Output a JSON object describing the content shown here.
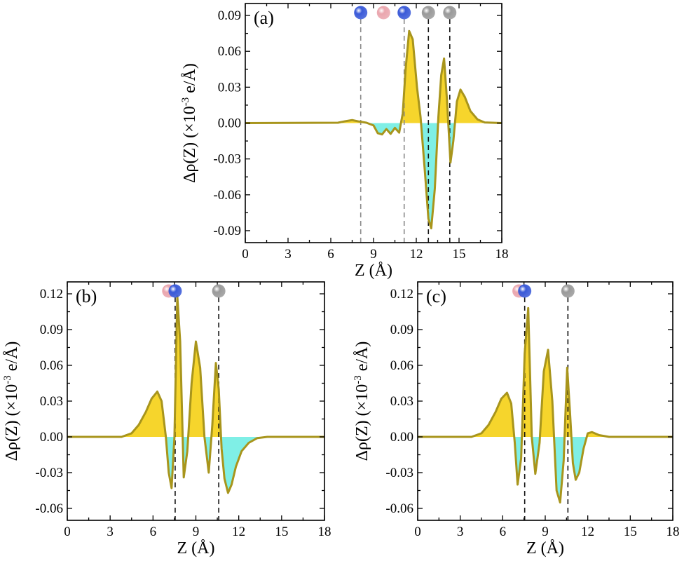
{
  "figure": {
    "colors": {
      "curve": "#a8951c",
      "positive_fill": "#f6d52c",
      "negative_fill": "#7fefe6",
      "atom_blue": "#3a5ad8",
      "atom_pink": "#eaa6ae",
      "atom_gray": "#9a9a9a",
      "guide_black": "#111111",
      "guide_gray": "#8a8a8a"
    }
  },
  "chart_data": [
    {
      "type": "area",
      "panel_label": "(a)",
      "xlabel": "Z (Å)",
      "ylabel": "Δρ(Z) (×10",
      "ylabel_exp": "-3",
      "ylabel_tail": " e/Å)",
      "xlim": [
        0,
        18
      ],
      "ylim": [
        -0.1,
        0.1
      ],
      "xticks": [
        0,
        3,
        6,
        9,
        12,
        15,
        18
      ],
      "yticks": [
        -0.09,
        -0.06,
        -0.03,
        0.0,
        0.03,
        0.06,
        0.09
      ],
      "xtick_labels": [
        "0",
        "3",
        "6",
        "9",
        "12",
        "15",
        "18"
      ],
      "ytick_labels": [
        "-0.09",
        "-0.06",
        "-0.03",
        "0.00",
        "0.03",
        "0.06",
        "0.09"
      ],
      "grid": false,
      "fill": "positive yellow, negative cyan",
      "x": [
        0,
        6.5,
        7.0,
        7.5,
        7.9,
        8.5,
        9.0,
        9.3,
        9.6,
        9.9,
        10.2,
        10.5,
        10.8,
        11.05,
        11.25,
        11.5,
        11.75,
        12.05,
        12.3,
        12.6,
        12.85,
        13.05,
        13.3,
        13.55,
        13.75,
        13.95,
        14.15,
        14.4,
        14.6,
        14.85,
        15.1,
        15.4,
        15.8,
        16.3,
        16.8,
        18
      ],
      "y": [
        0,
        0.0003,
        0.0015,
        0.0025,
        0.0015,
        0.0003,
        -0.002,
        -0.0085,
        -0.0095,
        -0.005,
        -0.009,
        -0.004,
        -0.008,
        0.008,
        0.045,
        0.077,
        0.07,
        0.03,
        0.005,
        -0.04,
        -0.08,
        -0.088,
        -0.055,
        0.005,
        0.04,
        0.054,
        0.02,
        -0.033,
        -0.015,
        0.018,
        0.028,
        0.022,
        0.01,
        0.003,
        0.0005,
        0
      ],
      "atoms": [
        {
          "z": 8.1,
          "element_color": "blue",
          "guide": "gray"
        },
        {
          "z": 9.7,
          "element_color": "pink",
          "guide": "none"
        },
        {
          "z": 11.15,
          "element_color": "blue",
          "guide": "gray"
        },
        {
          "z": 12.85,
          "element_color": "gray",
          "guide": "black"
        },
        {
          "z": 14.35,
          "element_color": "gray",
          "guide": "black"
        }
      ]
    },
    {
      "type": "area",
      "panel_label": "(b)",
      "xlabel": "Z (Å)",
      "ylabel": "Δρ(Z) (×10",
      "ylabel_exp": "-3",
      "ylabel_tail": " e/Å)",
      "xlim": [
        0,
        18
      ],
      "ylim": [
        -0.07,
        0.13
      ],
      "xticks": [
        0,
        3,
        6,
        9,
        12,
        15,
        18
      ],
      "yticks": [
        -0.06,
        -0.03,
        0.0,
        0.03,
        0.06,
        0.09,
        0.12
      ],
      "xtick_labels": [
        "0",
        "3",
        "6",
        "9",
        "12",
        "15",
        "18"
      ],
      "ytick_labels": [
        "-0.06",
        "-0.03",
        "0.00",
        "0.03",
        "0.06",
        "0.09",
        "0.12"
      ],
      "grid": false,
      "fill": "positive yellow, negative cyan",
      "x": [
        0,
        3.8,
        4.5,
        5.0,
        5.5,
        5.9,
        6.3,
        6.6,
        6.9,
        7.1,
        7.3,
        7.5,
        7.7,
        7.9,
        8.15,
        8.4,
        8.7,
        9.0,
        9.3,
        9.6,
        9.9,
        10.15,
        10.4,
        10.6,
        10.8,
        11.0,
        11.25,
        11.5,
        11.8,
        12.2,
        12.7,
        13.3,
        14.0,
        18
      ],
      "y": [
        0,
        0,
        0.003,
        0.01,
        0.021,
        0.032,
        0.038,
        0.03,
        0.0,
        -0.03,
        -0.043,
        0.0,
        0.118,
        0.08,
        -0.034,
        -0.012,
        0.045,
        0.08,
        0.058,
        0.0,
        -0.03,
        0.01,
        0.062,
        0.04,
        -0.01,
        -0.035,
        -0.047,
        -0.04,
        -0.025,
        -0.012,
        -0.005,
        -0.001,
        0,
        0
      ],
      "atoms": [
        {
          "z": 7.1,
          "element_color": "pink",
          "guide": "none"
        },
        {
          "z": 7.55,
          "element_color": "blue",
          "guide": "black"
        },
        {
          "z": 10.6,
          "element_color": "gray",
          "guide": "black"
        }
      ]
    },
    {
      "type": "area",
      "panel_label": "(c)",
      "xlabel": "Z (Å)",
      "ylabel": "Δρ(Z) (×10",
      "ylabel_exp": "-3",
      "ylabel_tail": " e/Å)",
      "xlim": [
        0,
        18
      ],
      "ylim": [
        -0.07,
        0.13
      ],
      "xticks": [
        0,
        3,
        6,
        9,
        12,
        15,
        18
      ],
      "yticks": [
        -0.06,
        -0.03,
        0.0,
        0.03,
        0.06,
        0.09,
        0.12
      ],
      "xtick_labels": [
        "0",
        "3",
        "6",
        "9",
        "12",
        "15",
        "18"
      ],
      "ytick_labels": [
        "-0.06",
        "-0.03",
        "0.00",
        "0.03",
        "0.06",
        "0.09",
        "0.12"
      ],
      "grid": false,
      "fill": "positive yellow, negative cyan",
      "x": [
        0,
        3.8,
        4.5,
        5.0,
        5.5,
        5.9,
        6.3,
        6.6,
        6.85,
        7.05,
        7.3,
        7.55,
        7.8,
        8.05,
        8.3,
        8.6,
        8.9,
        9.2,
        9.5,
        9.8,
        10.05,
        10.3,
        10.55,
        10.75,
        10.95,
        11.15,
        11.4,
        11.7,
        12.0,
        12.3,
        12.8,
        13.5,
        18
      ],
      "y": [
        0,
        0,
        0.003,
        0.01,
        0.021,
        0.032,
        0.037,
        0.028,
        -0.005,
        -0.04,
        -0.018,
        0.07,
        0.108,
        0.0,
        -0.031,
        -0.005,
        0.055,
        0.073,
        0.03,
        -0.045,
        -0.055,
        -0.02,
        0.058,
        0.02,
        -0.022,
        -0.036,
        -0.03,
        -0.01,
        0.003,
        0.004,
        0.0015,
        0,
        0
      ],
      "atoms": [
        {
          "z": 7.15,
          "element_color": "pink",
          "guide": "none"
        },
        {
          "z": 7.55,
          "element_color": "blue",
          "guide": "black"
        },
        {
          "z": 10.6,
          "element_color": "gray",
          "guide": "black"
        }
      ]
    }
  ]
}
